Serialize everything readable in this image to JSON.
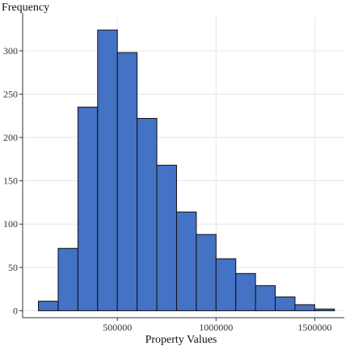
{
  "chart_data": {
    "type": "bar",
    "title": "",
    "xlabel": "Property Values",
    "ylabel": "Frequency",
    "bin_width": 100000,
    "bins": [
      {
        "start": 100000,
        "end": 200000,
        "count": 11
      },
      {
        "start": 200000,
        "end": 300000,
        "count": 72
      },
      {
        "start": 300000,
        "end": 400000,
        "count": 235
      },
      {
        "start": 400000,
        "end": 500000,
        "count": 324
      },
      {
        "start": 500000,
        "end": 600000,
        "count": 298
      },
      {
        "start": 600000,
        "end": 700000,
        "count": 222
      },
      {
        "start": 700000,
        "end": 800000,
        "count": 168
      },
      {
        "start": 800000,
        "end": 900000,
        "count": 114
      },
      {
        "start": 900000,
        "end": 1000000,
        "count": 88
      },
      {
        "start": 1000000,
        "end": 1100000,
        "count": 60
      },
      {
        "start": 1100000,
        "end": 1200000,
        "count": 43
      },
      {
        "start": 1200000,
        "end": 1300000,
        "count": 29
      },
      {
        "start": 1300000,
        "end": 1400000,
        "count": 16
      },
      {
        "start": 1400000,
        "end": 1500000,
        "count": 7
      },
      {
        "start": 1500000,
        "end": 1600000,
        "count": 2
      }
    ],
    "xlim": [
      20000,
      1650000
    ],
    "ylim": [
      -8,
      340
    ],
    "x_ticks": [
      500000,
      1000000,
      1500000
    ],
    "x_tick_labels": [
      "500000",
      "1000000",
      "1500000"
    ],
    "y_ticks": [
      0,
      50,
      100,
      150,
      200,
      250,
      300
    ],
    "y_tick_labels": [
      "0",
      "50",
      "100",
      "150",
      "200",
      "250",
      "300"
    ],
    "grid": true,
    "bar_color": "#4472C4",
    "bar_edge_color": "#111111"
  }
}
